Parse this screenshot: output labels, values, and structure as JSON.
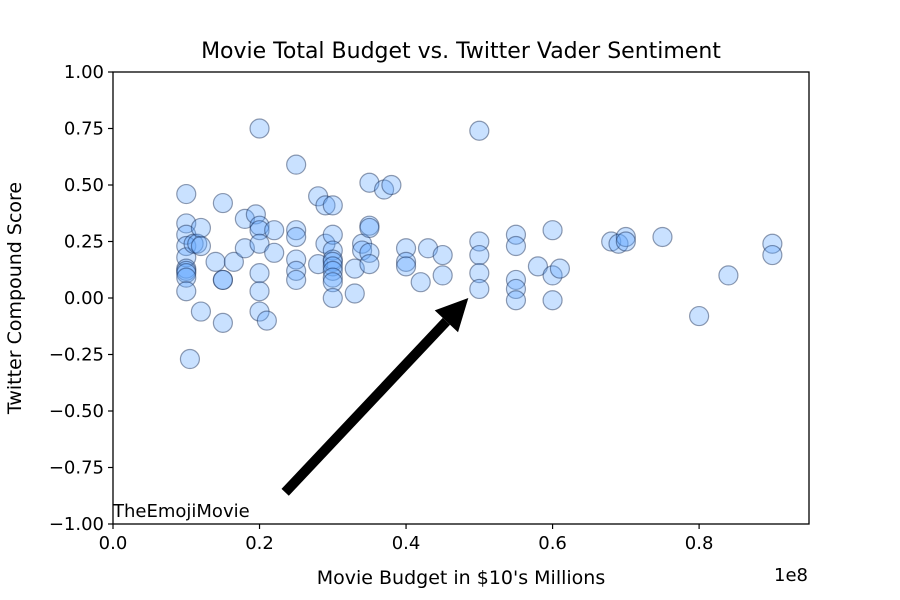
{
  "chart_data": {
    "type": "scatter",
    "title": "Movie Total Budget vs. Twitter Vader Sentiment",
    "xlabel": "Movie Budget in $10's Millions",
    "ylabel": "Twitter Compound Score",
    "x_offset_label": "1e8",
    "xlim": [
      0,
      0.95
    ],
    "ylim": [
      -1.0,
      1.0
    ],
    "xticks": [
      "0.0",
      "0.2",
      "0.4",
      "0.6",
      "0.8"
    ],
    "xtick_values": [
      0.0,
      0.2,
      0.4,
      0.6,
      0.8
    ],
    "yticks": [
      "−1.00",
      "−0.75",
      "−0.50",
      "−0.25",
      "0.00",
      "0.25",
      "0.50",
      "0.75",
      "1.00"
    ],
    "ytick_values": [
      -1.0,
      -0.75,
      -0.5,
      -0.25,
      0.0,
      0.25,
      0.5,
      0.75,
      1.0
    ],
    "grid": false,
    "annotation": {
      "text": "TheEmojiMovie",
      "text_xy": [
        0.0,
        -0.97
      ],
      "arrow_from": [
        0.235,
        -0.86
      ],
      "arrow_to": [
        0.485,
        0.0
      ]
    },
    "points": [
      {
        "x": 0.1,
        "y": 0.46
      },
      {
        "x": 0.1,
        "y": 0.33
      },
      {
        "x": 0.1,
        "y": 0.28
      },
      {
        "x": 0.1,
        "y": 0.23
      },
      {
        "x": 0.1,
        "y": 0.18
      },
      {
        "x": 0.1,
        "y": 0.13
      },
      {
        "x": 0.1,
        "y": 0.12
      },
      {
        "x": 0.1,
        "y": 0.11
      },
      {
        "x": 0.1,
        "y": 0.09
      },
      {
        "x": 0.1,
        "y": 0.03
      },
      {
        "x": 0.105,
        "y": -0.27
      },
      {
        "x": 0.11,
        "y": 0.24
      },
      {
        "x": 0.115,
        "y": 0.24
      },
      {
        "x": 0.12,
        "y": 0.31
      },
      {
        "x": 0.12,
        "y": 0.23
      },
      {
        "x": 0.12,
        "y": -0.06
      },
      {
        "x": 0.14,
        "y": 0.16
      },
      {
        "x": 0.15,
        "y": 0.42
      },
      {
        "x": 0.15,
        "y": 0.08
      },
      {
        "x": 0.15,
        "y": 0.08
      },
      {
        "x": 0.15,
        "y": -0.11
      },
      {
        "x": 0.165,
        "y": 0.16
      },
      {
        "x": 0.18,
        "y": 0.35
      },
      {
        "x": 0.18,
        "y": 0.22
      },
      {
        "x": 0.195,
        "y": 0.37
      },
      {
        "x": 0.2,
        "y": 0.75
      },
      {
        "x": 0.2,
        "y": 0.32
      },
      {
        "x": 0.2,
        "y": 0.3
      },
      {
        "x": 0.2,
        "y": 0.24
      },
      {
        "x": 0.2,
        "y": 0.11
      },
      {
        "x": 0.2,
        "y": 0.03
      },
      {
        "x": 0.2,
        "y": -0.06
      },
      {
        "x": 0.21,
        "y": -0.1
      },
      {
        "x": 0.22,
        "y": 0.3
      },
      {
        "x": 0.22,
        "y": 0.2
      },
      {
        "x": 0.25,
        "y": 0.59
      },
      {
        "x": 0.25,
        "y": 0.3
      },
      {
        "x": 0.25,
        "y": 0.27
      },
      {
        "x": 0.25,
        "y": 0.17
      },
      {
        "x": 0.25,
        "y": 0.12
      },
      {
        "x": 0.25,
        "y": 0.08
      },
      {
        "x": 0.28,
        "y": 0.45
      },
      {
        "x": 0.28,
        "y": 0.15
      },
      {
        "x": 0.29,
        "y": 0.41
      },
      {
        "x": 0.29,
        "y": 0.24
      },
      {
        "x": 0.3,
        "y": 0.41
      },
      {
        "x": 0.3,
        "y": 0.28
      },
      {
        "x": 0.3,
        "y": 0.21
      },
      {
        "x": 0.3,
        "y": 0.17
      },
      {
        "x": 0.3,
        "y": 0.16
      },
      {
        "x": 0.3,
        "y": 0.14
      },
      {
        "x": 0.3,
        "y": 0.12
      },
      {
        "x": 0.3,
        "y": 0.09
      },
      {
        "x": 0.3,
        "y": 0.07
      },
      {
        "x": 0.3,
        "y": 0.0
      },
      {
        "x": 0.33,
        "y": 0.13
      },
      {
        "x": 0.33,
        "y": 0.02
      },
      {
        "x": 0.34,
        "y": 0.24
      },
      {
        "x": 0.34,
        "y": 0.21
      },
      {
        "x": 0.35,
        "y": 0.51
      },
      {
        "x": 0.35,
        "y": 0.32
      },
      {
        "x": 0.35,
        "y": 0.31
      },
      {
        "x": 0.35,
        "y": 0.2
      },
      {
        "x": 0.35,
        "y": 0.15
      },
      {
        "x": 0.37,
        "y": 0.48
      },
      {
        "x": 0.38,
        "y": 0.5
      },
      {
        "x": 0.4,
        "y": 0.22
      },
      {
        "x": 0.4,
        "y": 0.16
      },
      {
        "x": 0.4,
        "y": 0.14
      },
      {
        "x": 0.42,
        "y": 0.07
      },
      {
        "x": 0.43,
        "y": 0.22
      },
      {
        "x": 0.45,
        "y": 0.19
      },
      {
        "x": 0.45,
        "y": 0.1
      },
      {
        "x": 0.5,
        "y": 0.74
      },
      {
        "x": 0.5,
        "y": 0.25
      },
      {
        "x": 0.5,
        "y": 0.19
      },
      {
        "x": 0.5,
        "y": 0.11
      },
      {
        "x": 0.5,
        "y": 0.04
      },
      {
        "x": 0.55,
        "y": 0.28
      },
      {
        "x": 0.55,
        "y": 0.23
      },
      {
        "x": 0.55,
        "y": 0.08
      },
      {
        "x": 0.55,
        "y": 0.04
      },
      {
        "x": 0.55,
        "y": -0.01
      },
      {
        "x": 0.58,
        "y": 0.14
      },
      {
        "x": 0.6,
        "y": 0.3
      },
      {
        "x": 0.6,
        "y": 0.1
      },
      {
        "x": 0.6,
        "y": -0.01
      },
      {
        "x": 0.61,
        "y": 0.13
      },
      {
        "x": 0.68,
        "y": 0.25
      },
      {
        "x": 0.69,
        "y": 0.24
      },
      {
        "x": 0.7,
        "y": 0.27
      },
      {
        "x": 0.7,
        "y": 0.25
      },
      {
        "x": 0.75,
        "y": 0.27
      },
      {
        "x": 0.8,
        "y": -0.08
      },
      {
        "x": 0.84,
        "y": 0.1
      },
      {
        "x": 0.9,
        "y": 0.24
      },
      {
        "x": 0.9,
        "y": 0.19
      }
    ]
  }
}
